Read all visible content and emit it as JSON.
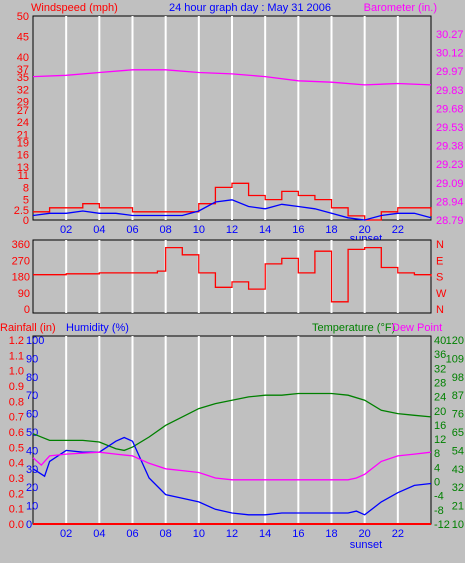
{
  "header": {
    "left_label": "Windspeed (mph)",
    "center_title": "24 hour graph day : May 31 2006",
    "right_label": "Barometer (in.)"
  },
  "colors": {
    "background": "#c0c0c0",
    "grid": "#ffffff",
    "wind": "#ff0000",
    "gust": "#0000ff",
    "barometer": "#ff00ff",
    "winddir": "#ff0000",
    "rain": "#ff0000",
    "humidity": "#0000ff",
    "temperature": "#008000",
    "dewpoint": "#ff00ff"
  },
  "chart_data": [
    {
      "type": "line",
      "panel": "wind-barometer",
      "x_ticks": [
        "02",
        "04",
        "06",
        "08",
        "10",
        "12",
        "14",
        "16",
        "18",
        "20",
        "22"
      ],
      "x_extra_label": "sunset",
      "xlim": [
        0,
        24
      ],
      "left_axis": {
        "label": "Windspeed (mph)",
        "ticks": [
          0,
          2.5,
          5,
          8,
          11,
          13,
          16,
          19,
          21,
          24,
          27,
          29,
          32,
          35,
          37,
          40,
          45,
          50
        ],
        "ylim": [
          0,
          50
        ]
      },
      "right_axis": {
        "label": "Barometer (in.)",
        "ticks": [
          "28.79",
          "28.94",
          "29.09",
          "29.23",
          "29.38",
          "29.53",
          "29.68",
          "29.83",
          "29.97",
          "30.12",
          "30.27"
        ],
        "ylim": [
          28.79,
          30.27
        ]
      },
      "series": [
        {
          "name": "Windspeed (mph)",
          "axis": "left",
          "x": [
            0,
            1,
            2,
            3,
            4,
            5,
            6,
            7,
            8,
            9,
            10,
            11,
            12,
            13,
            14,
            15,
            16,
            17,
            18,
            19,
            20,
            21,
            22,
            23,
            24
          ],
          "y": [
            2,
            3,
            3,
            4,
            3,
            3,
            2,
            2,
            2,
            2,
            4,
            8,
            9,
            6,
            5,
            7,
            6,
            5,
            3,
            1,
            0,
            2,
            3,
            3,
            1
          ]
        },
        {
          "name": "Barometer (in.)",
          "axis": "right",
          "x": [
            0,
            2,
            4,
            6,
            8,
            10,
            12,
            14,
            16,
            18,
            20,
            22,
            24
          ],
          "y": [
            29.83,
            29.84,
            29.86,
            29.88,
            29.88,
            29.86,
            29.85,
            29.83,
            29.8,
            29.79,
            29.77,
            29.78,
            29.77
          ]
        }
      ]
    },
    {
      "type": "line",
      "panel": "wind-direction",
      "x_ticks": [
        "02",
        "04",
        "06",
        "08",
        "10",
        "12",
        "14",
        "16",
        "18",
        "20",
        "22"
      ],
      "xlim": [
        0,
        24
      ],
      "left_axis": {
        "ticks": [
          0,
          90,
          180,
          270,
          360
        ],
        "ylim": [
          0,
          360
        ]
      },
      "right_axis": {
        "ticks": [
          "N",
          "E",
          "S",
          "W",
          "N"
        ]
      },
      "series": [
        {
          "name": "Wind direction",
          "x": [
            0,
            2,
            4,
            6,
            7.5,
            8,
            9,
            10,
            11,
            12,
            13,
            14,
            15,
            16,
            17,
            18,
            19,
            20,
            21,
            22,
            23,
            24
          ],
          "y": [
            190,
            195,
            200,
            200,
            210,
            340,
            300,
            200,
            120,
            150,
            110,
            250,
            280,
            200,
            320,
            40,
            330,
            340,
            230,
            200,
            190,
            180
          ]
        }
      ]
    },
    {
      "type": "line",
      "panel": "rain-humidity-temperature",
      "x_ticks": [
        "02",
        "04",
        "06",
        "08",
        "10",
        "12",
        "14",
        "16",
        "18",
        "20",
        "22"
      ],
      "x_extra_label": "sunset",
      "xlim": [
        0,
        24
      ],
      "axis_titles": {
        "rain": "Rainfall (in)",
        "humidity": "Humidity (%)",
        "temperature": "Temperature (°F)",
        "dewpoint": "Dew Point"
      },
      "axes": {
        "rain_ticks": [
          "0.0",
          "0.1",
          "0.2",
          "0.3",
          "0.4",
          "0.5",
          "0.6",
          "0.7",
          "0.8",
          "0.9",
          "1.0",
          "1.1",
          "1.2"
        ],
        "humidity_ticks": [
          "0",
          "10",
          "20",
          "30",
          "40",
          "50",
          "60",
          "70",
          "80",
          "90",
          "100"
        ],
        "celsius_ticks": [
          "-12",
          "-8",
          "-4",
          "0",
          "4",
          "8",
          "12",
          "16",
          "20",
          "24",
          "28",
          "32",
          "36",
          "40"
        ],
        "fahrenheit_ticks": [
          "10",
          "21",
          "32",
          "43",
          "54",
          "65",
          "76",
          "87",
          "98",
          "109",
          "120"
        ],
        "fahrenheit_ylim": [
          10,
          120
        ]
      },
      "series": [
        {
          "name": "Temperature (°F)",
          "x": [
            0,
            1,
            2,
            3,
            4,
            5,
            5.5,
            6,
            7,
            8,
            9,
            10,
            11,
            12,
            13,
            14,
            15,
            16,
            17,
            18,
            19,
            20,
            21,
            22,
            23,
            24
          ],
          "y": [
            64,
            60,
            60,
            60,
            59,
            55,
            54,
            56,
            62,
            69,
            74,
            79,
            82,
            84,
            86,
            87,
            87,
            88,
            88,
            88,
            87,
            84,
            78,
            76,
            75,
            74
          ]
        },
        {
          "name": "Humidity (%)",
          "x": [
            0,
            0.7,
            1,
            2,
            3,
            4,
            5,
            5.5,
            6,
            7,
            8,
            9,
            10,
            11,
            12,
            13,
            14,
            15,
            16,
            17,
            18,
            19,
            19.5,
            20,
            21,
            22,
            23,
            24
          ],
          "y": [
            30,
            26,
            34,
            40,
            39,
            39,
            45,
            47,
            45,
            25,
            16,
            14,
            12,
            8,
            6,
            5,
            5,
            6,
            6,
            6,
            6,
            6,
            7,
            5,
            12,
            17,
            21,
            22
          ]
        },
        {
          "name": "Dew Point",
          "x": [
            0,
            0.5,
            1,
            2,
            4,
            5,
            6,
            7,
            8,
            9,
            10,
            11,
            12,
            14,
            16,
            18,
            19,
            19.5,
            20,
            21,
            22,
            23,
            24
          ],
          "y": [
            36,
            32,
            37,
            38,
            39,
            38,
            37,
            33,
            30,
            29,
            28,
            25,
            24,
            24,
            24,
            24,
            24,
            25,
            27,
            34,
            37,
            38,
            39
          ]
        },
        {
          "name": "Rainfall (in)",
          "x": [
            0,
            24
          ],
          "y": [
            0,
            0
          ]
        }
      ]
    }
  ]
}
